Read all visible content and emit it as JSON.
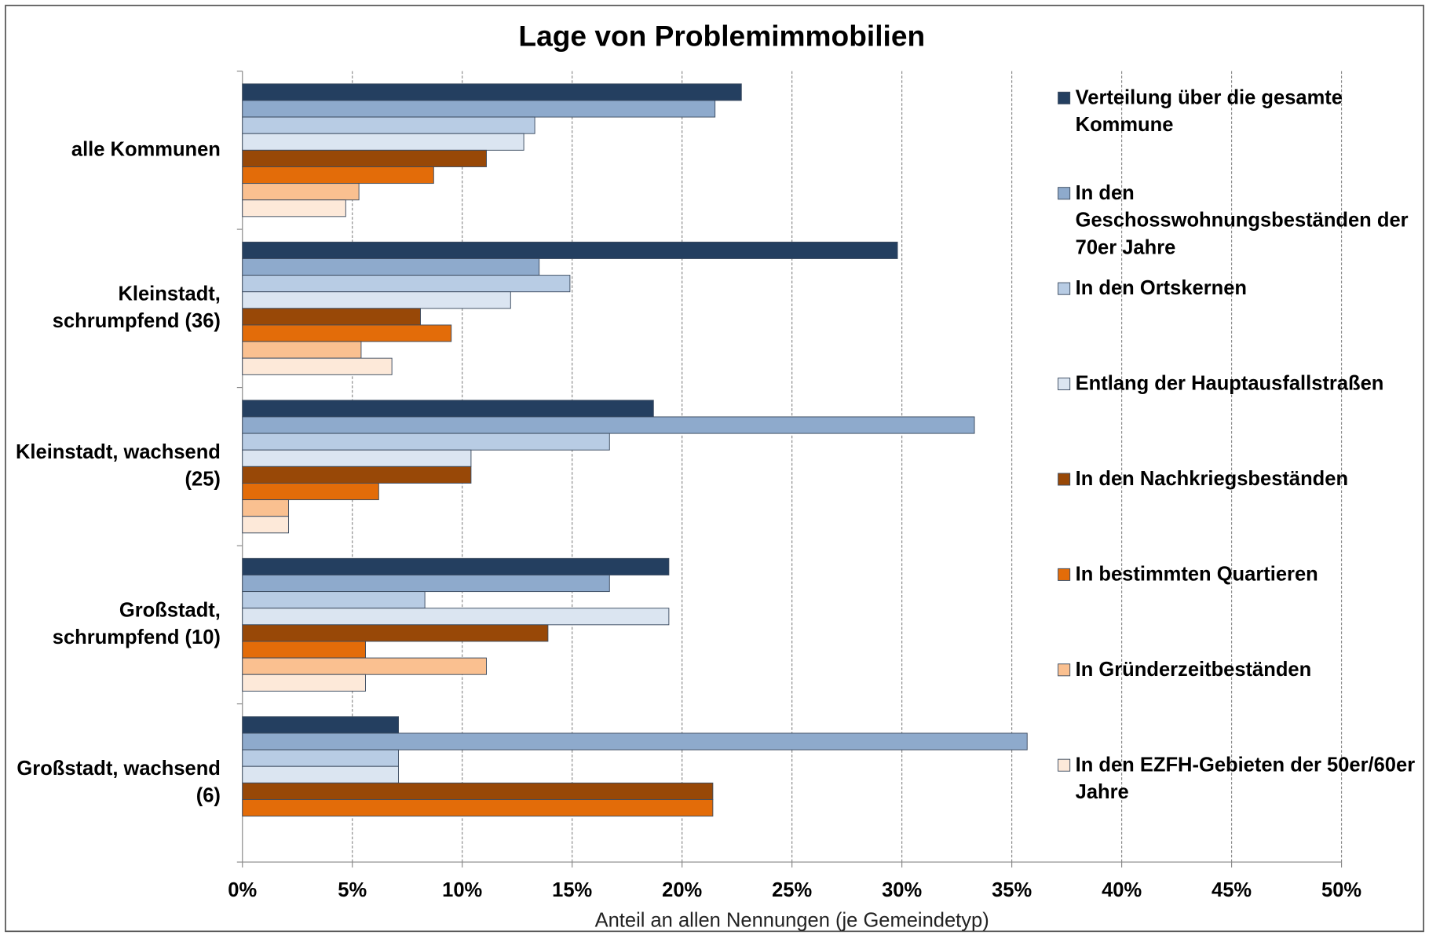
{
  "chart_data": {
    "type": "hbar",
    "title": "Lage von Problemimmobilien",
    "x_label": "Anteil an allen Nennungen (je Gemeindetyp)",
    "categories": [
      "alle Kommunen",
      "Kleinstadt, schrumpfend (36)",
      "Kleinstadt, wachsend (25)",
      "Großstadt, schrumpfend (10)",
      "Großstadt, wachsend (6)"
    ],
    "series": [
      {
        "name": "Verteilung über die gesamte Kommune",
        "color": "#243f60",
        "values": [
          22.7,
          29.8,
          18.7,
          19.4,
          7.1
        ]
      },
      {
        "name": "In den Geschosswohnungsbeständen der 70er Jahre",
        "color": "#8eaacc",
        "values": [
          21.5,
          13.5,
          33.3,
          16.7,
          35.7
        ]
      },
      {
        "name": "In den Ortskernen",
        "color": "#b8cce4",
        "values": [
          13.3,
          14.9,
          16.7,
          8.3,
          7.1
        ]
      },
      {
        "name": "Entlang der Hauptausfallstraßen",
        "color": "#dbe5f1",
        "values": [
          12.8,
          12.2,
          10.4,
          19.4,
          7.1
        ]
      },
      {
        "name": "In den Nachkriegsbeständen",
        "color": "#984807",
        "values": [
          11.1,
          8.1,
          10.4,
          13.9,
          21.4
        ]
      },
      {
        "name": "In bestimmten Quartieren",
        "color": "#e36c09",
        "values": [
          8.7,
          9.5,
          6.2,
          5.6,
          21.4
        ]
      },
      {
        "name": "In Gründerzeitbeständen",
        "color": "#fac090",
        "values": [
          5.3,
          5.4,
          2.1,
          11.1,
          0
        ]
      },
      {
        "name": "In den EZFH-Gebieten der 50er/60er Jahre",
        "color": "#fde9d9",
        "values": [
          4.7,
          6.8,
          2.1,
          5.6,
          0
        ]
      }
    ],
    "xlim": [
      0,
      50
    ],
    "xticks": [
      {
        "value": 0,
        "label": "0%"
      },
      {
        "value": 5,
        "label": "5%"
      },
      {
        "value": 10,
        "label": "10%"
      },
      {
        "value": 15,
        "label": "15%"
      },
      {
        "value": 20,
        "label": "20%"
      },
      {
        "value": 25,
        "label": "25%"
      },
      {
        "value": 30,
        "label": "30%"
      },
      {
        "value": 35,
        "label": "35%"
      },
      {
        "value": 40,
        "label": "40%"
      },
      {
        "value": 45,
        "label": "45%"
      },
      {
        "value": 50,
        "label": "50%"
      }
    ],
    "grid": true,
    "legend": "right"
  }
}
